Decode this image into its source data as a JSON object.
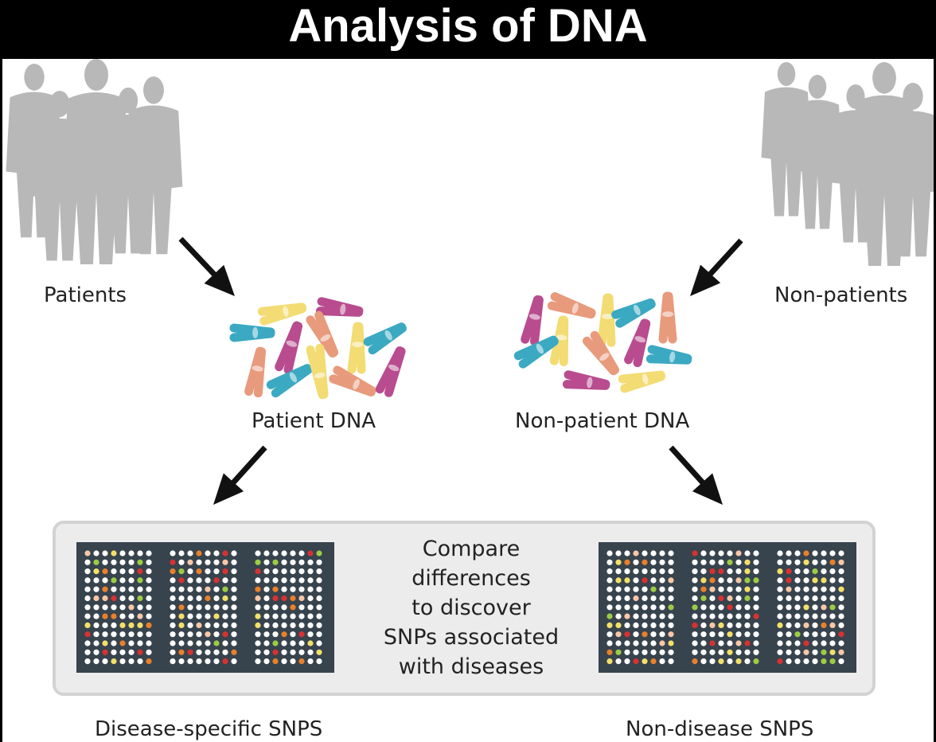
{
  "title": "Analysis of DNA",
  "labels": {
    "patients": "Patients",
    "non_patients": "Non-patients",
    "patient_dna": "Patient DNA",
    "non_patient_dna": "Non-patient DNA",
    "disease_snps": "Disease-specific SNPS",
    "non_disease_snps": "Non-disease SNPS"
  },
  "compare_lines": [
    "Compare",
    "differences",
    "to discover",
    "SNPs associated",
    "with diseases"
  ],
  "colors": {
    "silhouette": "#b8b8b8",
    "chip_bg": "#37434d",
    "panel_bg": "#ececec",
    "panel_border": "#d2d2d2",
    "arrow": "#111111",
    "chromosomes": [
      "#f2dc73",
      "#b84c8f",
      "#e89a7c",
      "#3ba9c2"
    ],
    "dots": [
      "#ffffff",
      "#f2e06a",
      "#9ccc45",
      "#e8802c",
      "#d63232",
      "#f6c7a8"
    ]
  },
  "icons": [
    "people-silhouette-icon",
    "chromosome-icon",
    "arrow-icon",
    "microarray-chip-icon"
  ]
}
